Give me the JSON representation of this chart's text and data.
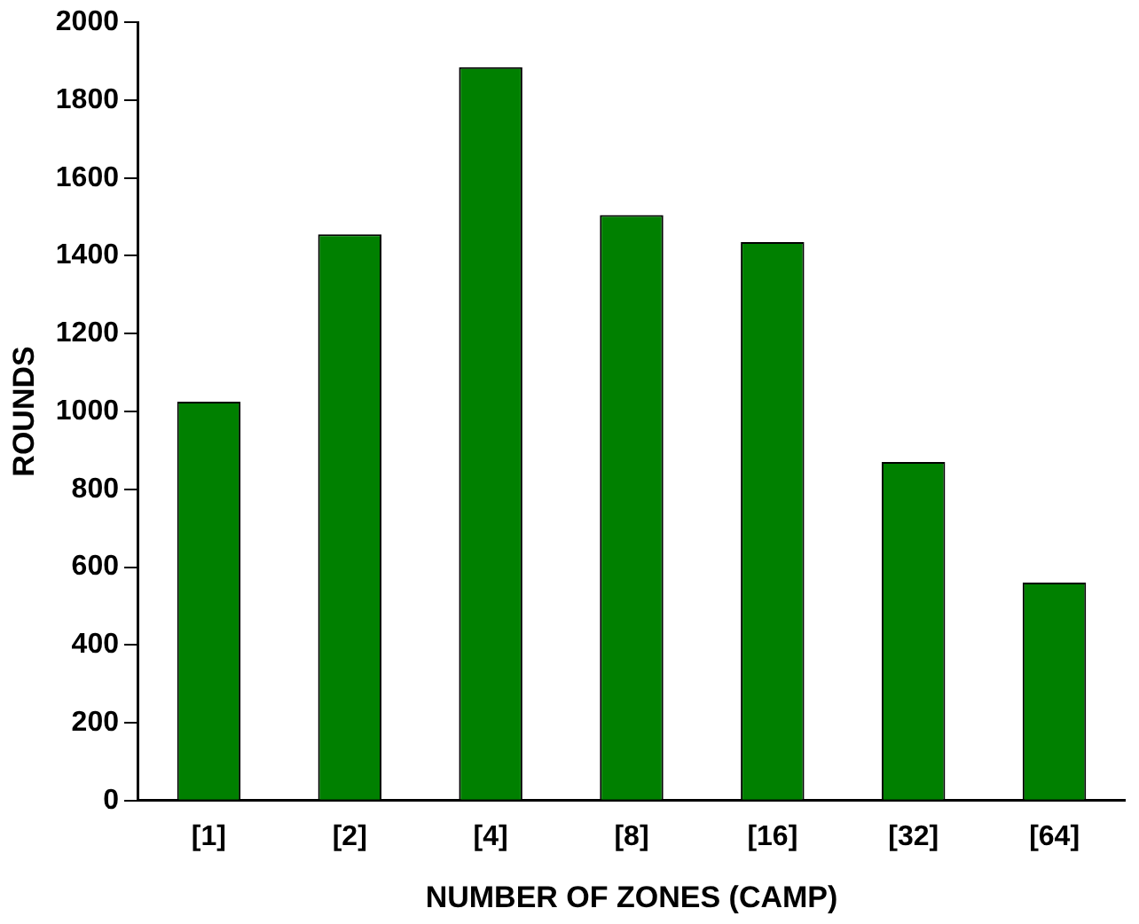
{
  "chart_data": {
    "type": "bar",
    "xlabel": "NUMBER OF ZONES (CAMP)",
    "ylabel": "ROUNDS",
    "categories": [
      "[1]",
      "[2]",
      "[4]",
      "[8]",
      "[16]",
      "[32]",
      "[64]"
    ],
    "values": [
      1025,
      1455,
      1885,
      1505,
      1435,
      870,
      560
    ],
    "color": "#008000",
    "ylim": [
      0,
      2000
    ],
    "yticks": [
      0,
      200,
      400,
      600,
      800,
      1000,
      1200,
      1400,
      1600,
      1800,
      2000
    ],
    "grid": false
  }
}
